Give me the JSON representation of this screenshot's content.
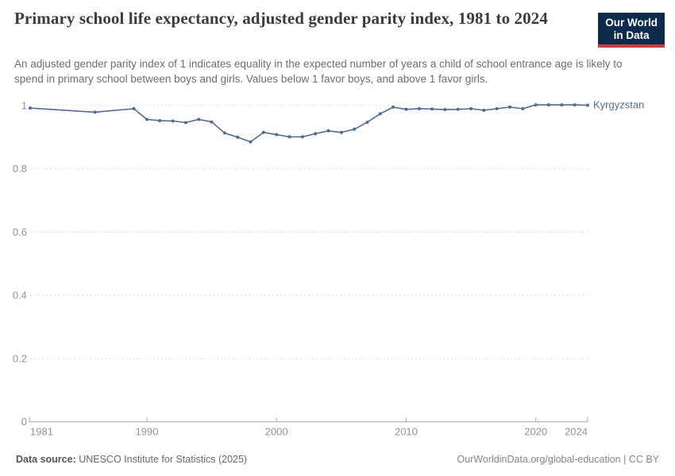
{
  "header": {
    "title": "Primary school life expectancy, adjusted gender parity index, 1981 to 2024",
    "subtitle": "An adjusted gender parity index of 1 indicates equality in the expected number of years a child of school entrance age is likely to spend in primary school between boys and girls. Values below 1 favor boys, and above 1 favor girls."
  },
  "logo": {
    "line1": "Our World",
    "line2": "in Data",
    "bg_color": "#0d2b4d",
    "accent_color": "#d63a3a"
  },
  "chart_data": {
    "type": "line",
    "title": "Primary school life expectancy, adjusted gender parity index, 1981 to 2024",
    "xlabel": "",
    "ylabel": "",
    "xlim": [
      1981,
      2024
    ],
    "ylim": [
      0,
      1
    ],
    "x_ticks": [
      1981,
      1990,
      2000,
      2010,
      2020,
      2024
    ],
    "y_ticks": [
      0,
      0.2,
      0.4,
      0.6,
      0.8,
      1
    ],
    "y_tick_labels": [
      "0",
      "0.2",
      "0.4",
      "0.6",
      "0.8",
      "1"
    ],
    "grid": "horizontal-dashed",
    "markers": true,
    "legend_position": "end-of-line-label",
    "series": [
      {
        "name": "Kyrgyzstan",
        "color": "#4c6a9c",
        "x": [
          1981,
          1986,
          1989,
          1990,
          1991,
          1992,
          1993,
          1994,
          1995,
          1996,
          1997,
          1998,
          1999,
          2000,
          2001,
          2002,
          2003,
          2004,
          2005,
          2006,
          2007,
          2008,
          2009,
          2010,
          2011,
          2012,
          2013,
          2014,
          2015,
          2016,
          2017,
          2018,
          2019,
          2020,
          2021,
          2022,
          2023,
          2024
        ],
        "values": [
          0.992,
          0.979,
          0.99,
          0.956,
          0.952,
          0.951,
          0.946,
          0.956,
          0.948,
          0.913,
          0.9,
          0.885,
          0.915,
          0.908,
          0.901,
          0.901,
          0.911,
          0.92,
          0.915,
          0.925,
          0.947,
          0.974,
          0.995,
          0.988,
          0.99,
          0.989,
          0.987,
          0.988,
          0.99,
          0.985,
          0.99,
          0.995,
          0.99,
          1.002,
          1.002,
          1.002,
          1.002,
          1.001
        ]
      }
    ],
    "style": {
      "grid_color": "#dcdcdc",
      "axis_color": "#a5a5a5",
      "tick_label_color": "#929292"
    }
  },
  "footer": {
    "data_source_label": "Data source:",
    "data_source_value": " UNESCO Institute for Statistics (2025)",
    "attribution": "OurWorldinData.org/global-education | CC BY"
  }
}
